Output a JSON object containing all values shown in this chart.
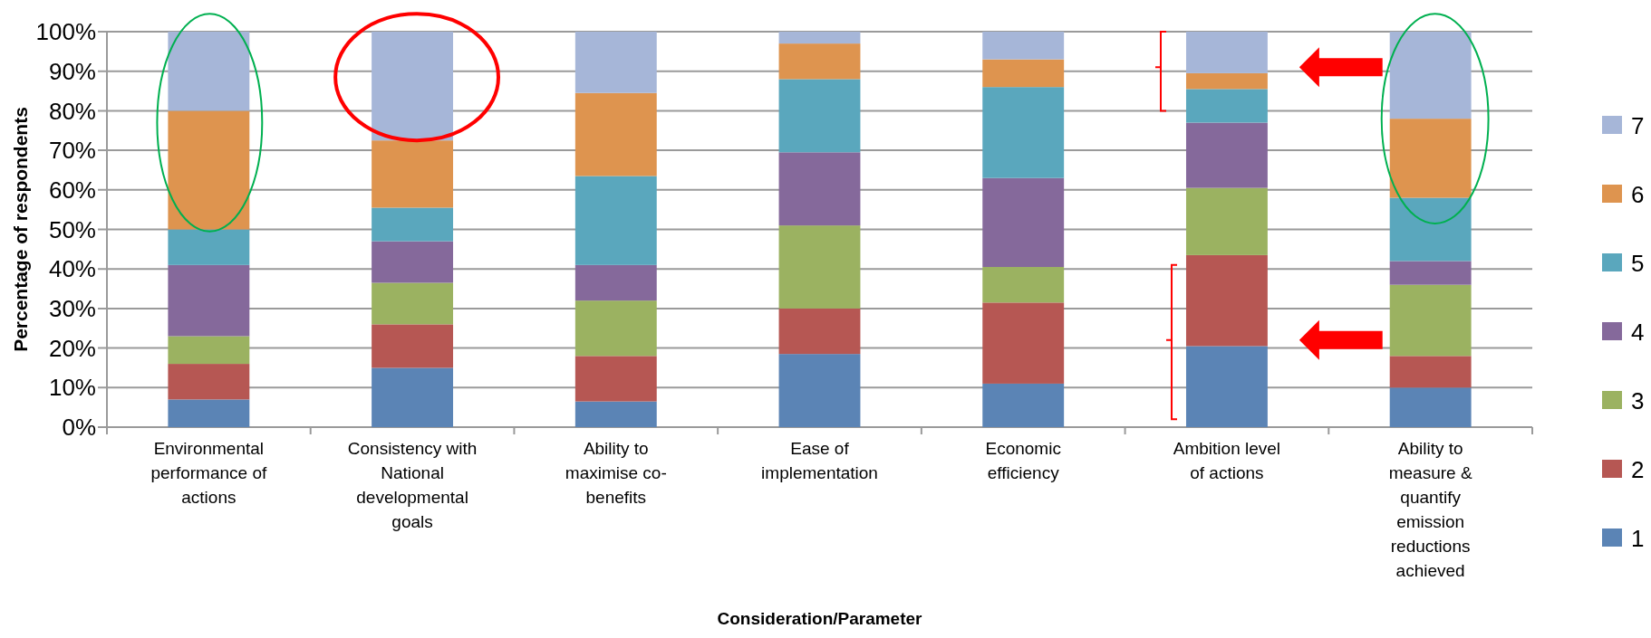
{
  "chart_data": {
    "type": "bar",
    "stacked": true,
    "xlabel": "Consideration/Parameter",
    "ylabel": "Percentage of respondents",
    "categories": [
      "Environmental performance of actions",
      "Consistency with National developmental goals",
      "Ability to maximise co-benefits",
      "Ease of implementation",
      "Economic efficiency",
      "Ambition level of actions",
      "Ability to measure & quantify emission reductions achieved"
    ],
    "series": [
      {
        "name": "1",
        "color": "#5b84b5",
        "values": [
          7,
          15,
          6.5,
          18.5,
          11,
          20.5,
          10
        ]
      },
      {
        "name": "2",
        "color": "#b65753",
        "values": [
          9,
          11,
          11.5,
          11.5,
          20.5,
          23,
          8
        ]
      },
      {
        "name": "3",
        "color": "#9bb261",
        "values": [
          7,
          10.5,
          14,
          21,
          9,
          17,
          18
        ]
      },
      {
        "name": "4",
        "color": "#85699b",
        "values": [
          18,
          10.5,
          9,
          18.5,
          22.5,
          16.5,
          6
        ]
      },
      {
        "name": "5",
        "color": "#5aa7bd",
        "values": [
          9,
          8.5,
          22.5,
          18.5,
          23,
          8.5,
          16
        ]
      },
      {
        "name": "6",
        "color": "#de944f",
        "values": [
          30,
          17,
          21,
          9,
          7,
          4,
          20
        ]
      },
      {
        "name": "7",
        "color": "#a6b6d8",
        "values": [
          20,
          27.5,
          15.5,
          3,
          7,
          10.5,
          22
        ]
      }
    ],
    "ylim": [
      0,
      100
    ],
    "yticks": [
      {
        "value": 0,
        "label": "0%"
      },
      {
        "value": 10,
        "label": "10%"
      },
      {
        "value": 20,
        "label": "20%"
      },
      {
        "value": 30,
        "label": "30%"
      },
      {
        "value": 40,
        "label": "40%"
      },
      {
        "value": 50,
        "label": "50%"
      },
      {
        "value": 60,
        "label": "60%"
      },
      {
        "value": 70,
        "label": "70%"
      },
      {
        "value": 80,
        "label": "80%"
      },
      {
        "value": 90,
        "label": "90%"
      },
      {
        "value": 100,
        "label": "100%"
      }
    ],
    "grid": "y",
    "legend": "right"
  }
}
